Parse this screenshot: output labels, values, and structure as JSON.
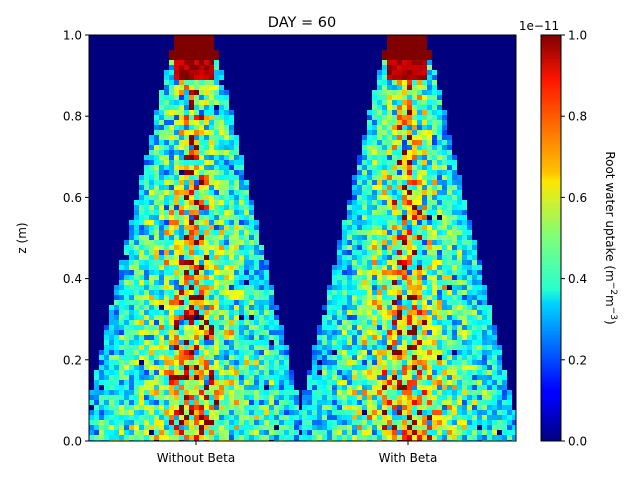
{
  "chart_data": {
    "type": "heatmap",
    "title": "DAY = 60",
    "ylabel": "z (m)",
    "ylim": [
      0.0,
      1.0
    ],
    "yticks": [
      "0.0",
      "0.2",
      "0.4",
      "0.6",
      "0.8",
      "1.0"
    ],
    "xticks": [
      "Without Beta",
      "With Beta"
    ],
    "colormap": "jet",
    "colorbar": {
      "label": "Root water uptake (m$^{-2}$m$^{-3}$)",
      "label_text": "Root water uptake (m",
      "label_sup1": "−2",
      "label_mid": "m",
      "label_sup2": "−3",
      "label_end": ")",
      "scale_label": "1e−11",
      "range": [
        0.0,
        1.0
      ],
      "ticks": [
        "0.0",
        "0.2",
        "0.4",
        "0.6",
        "0.8",
        "1.0"
      ]
    },
    "panels": [
      {
        "name": "Without Beta",
        "hotspot_z": 0.97,
        "spread_top": 0.05,
        "spread_bottom": 0.5
      },
      {
        "name": "With Beta",
        "hotspot_z": 0.97,
        "spread_top": 0.05,
        "spread_bottom": 0.45
      }
    ]
  }
}
